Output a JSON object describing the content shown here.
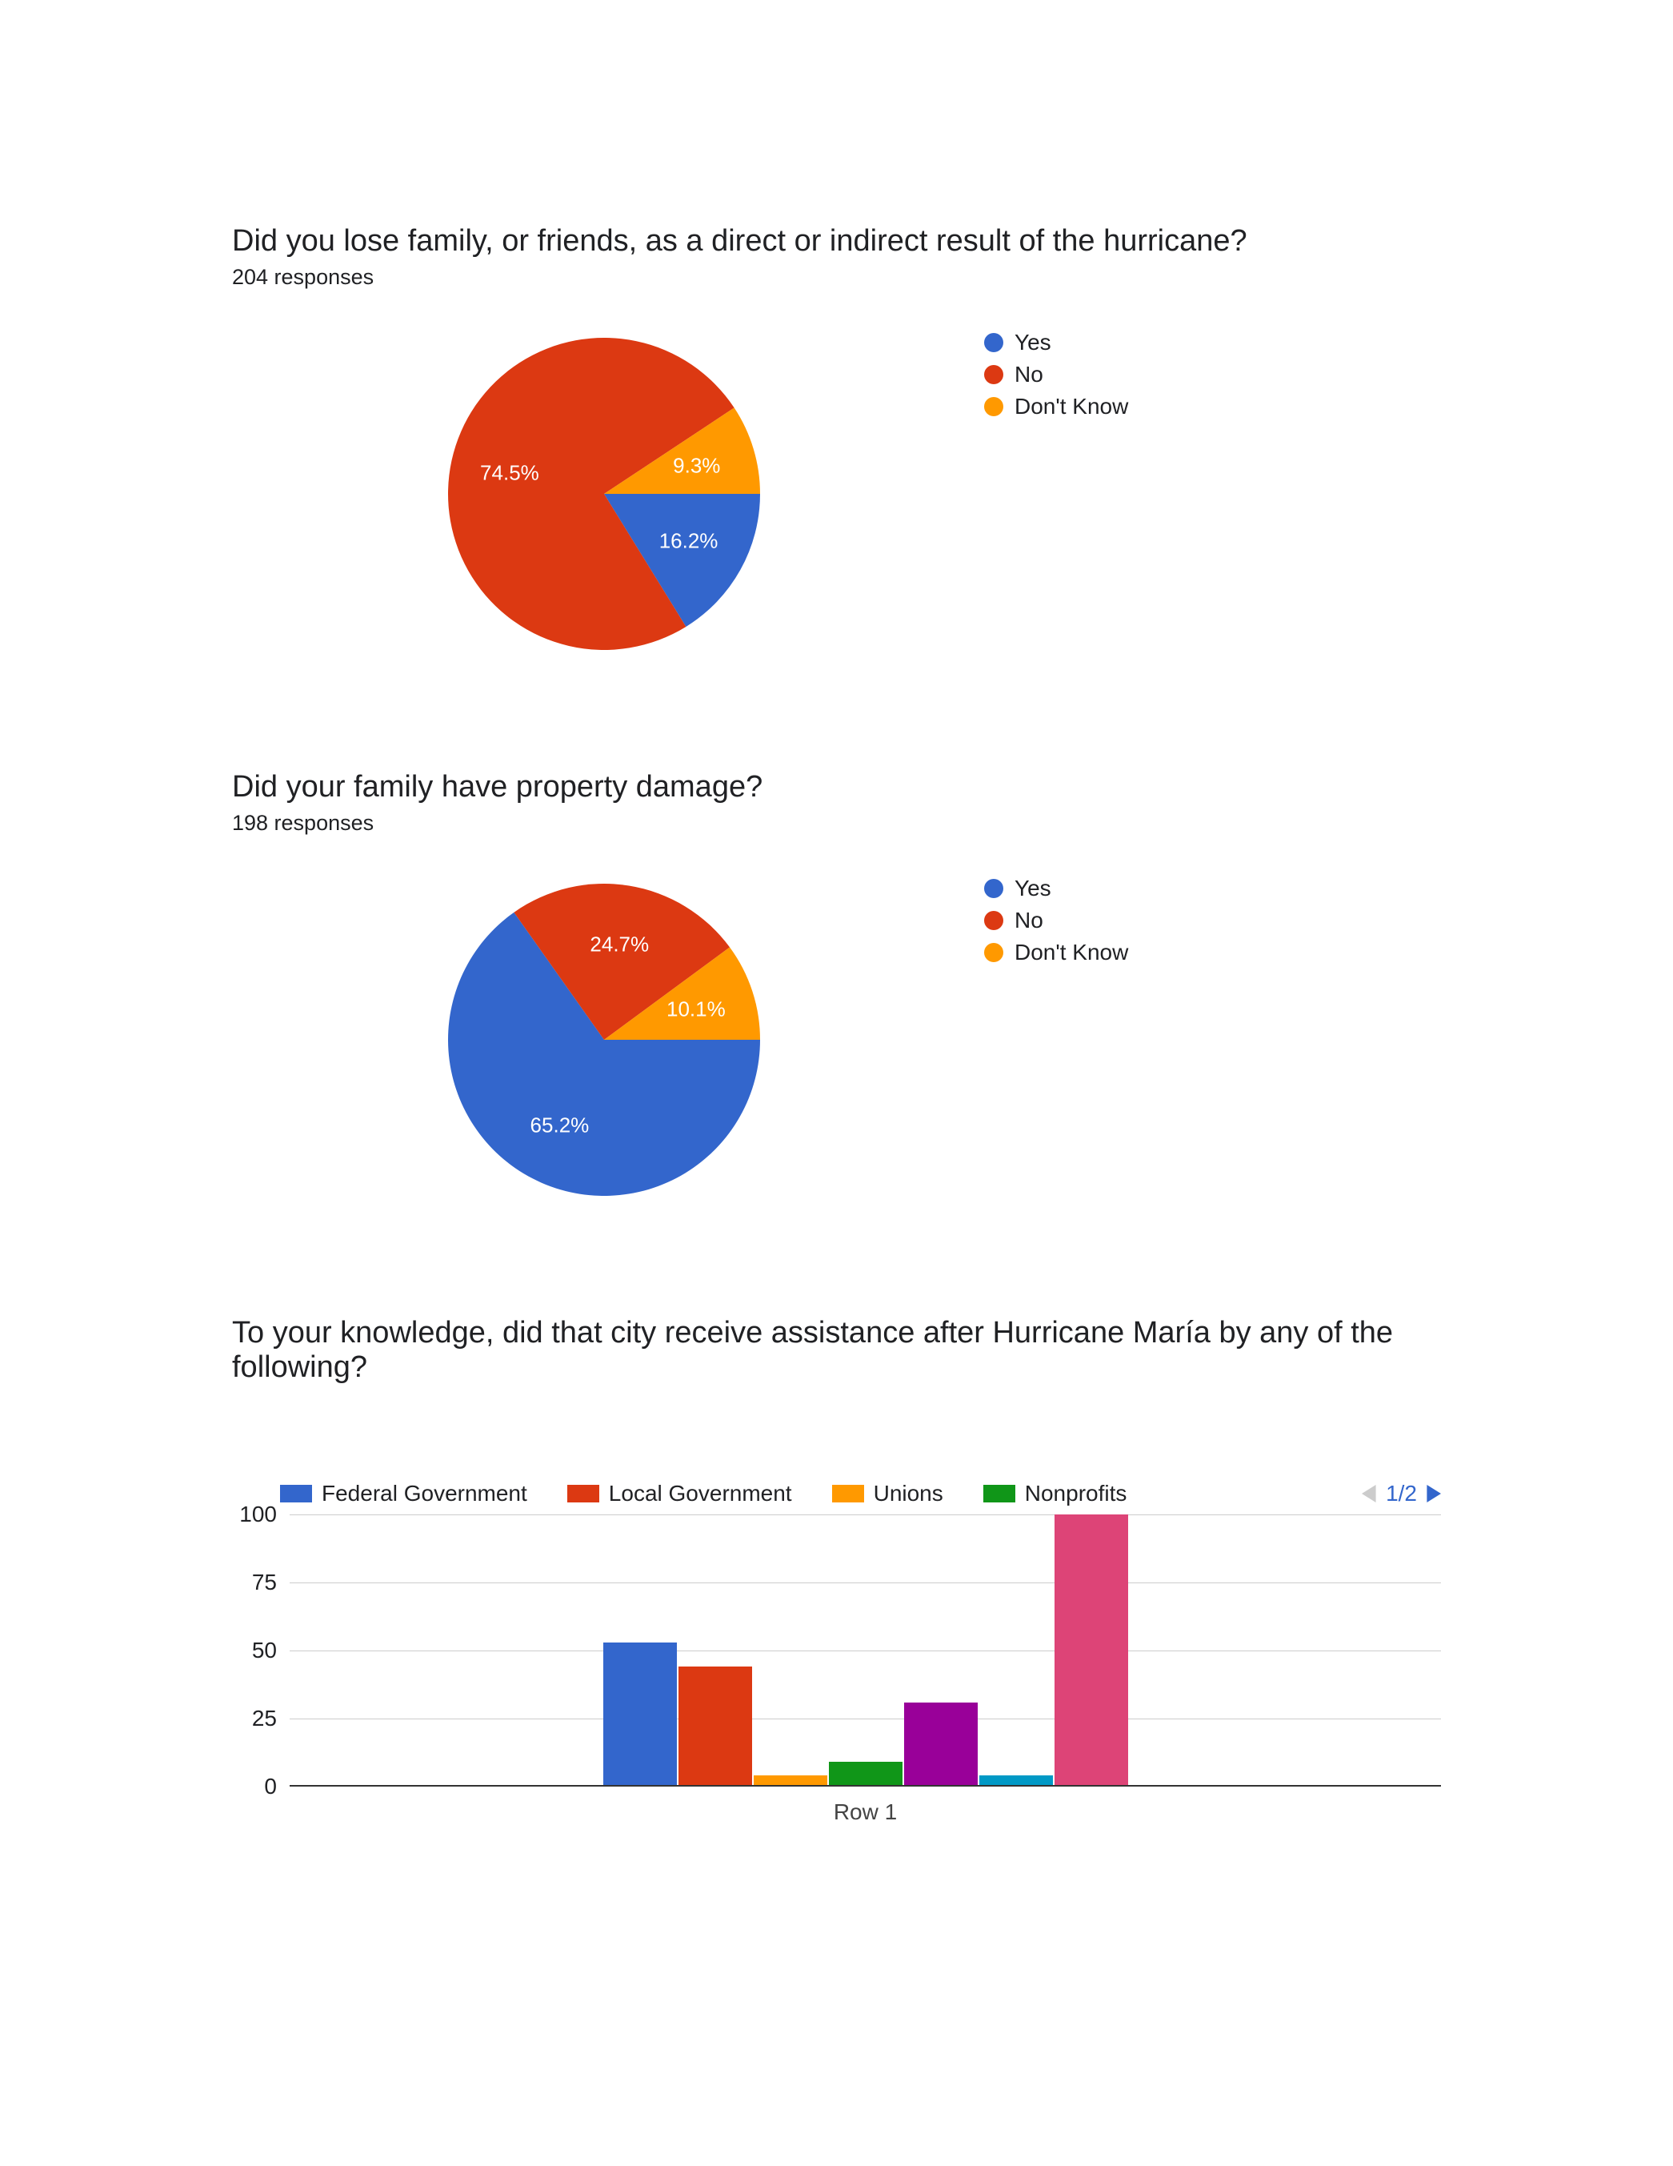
{
  "colors": {
    "blue": "#3366cc",
    "red": "#dc3912",
    "orange": "#ff9900",
    "green": "#109618",
    "purple": "#990099",
    "cyan": "#0099c6",
    "pink": "#dd4477",
    "grid": "#cccccc",
    "baseline": "#333333",
    "text": "#202124",
    "arrow_disabled": "#cccccc",
    "arrow_enabled": "#3366cc",
    "background": "#ffffff"
  },
  "chart1": {
    "type": "pie",
    "title": "Did you lose family, or friends, as a direct or indirect result of the hurricane?",
    "responses_label": "204 responses",
    "slices": [
      {
        "label": "Yes",
        "pct": 16.2,
        "color": "#3366cc",
        "display": "16.2%"
      },
      {
        "label": "No",
        "pct": 74.5,
        "color": "#dc3912",
        "display": "74.5%"
      },
      {
        "label": "Don't Know",
        "pct": 9.3,
        "color": "#ff9900",
        "display": "9.3%"
      }
    ],
    "legend": [
      {
        "label": "Yes",
        "color": "#3366cc"
      },
      {
        "label": "No",
        "color": "#dc3912"
      },
      {
        "label": "Don't Know",
        "color": "#ff9900"
      }
    ]
  },
  "chart2": {
    "type": "pie",
    "title": "Did your family have property damage?",
    "responses_label": "198 responses",
    "slices": [
      {
        "label": "Yes",
        "pct": 65.2,
        "color": "#3366cc",
        "display": "65.2%"
      },
      {
        "label": "No",
        "pct": 24.7,
        "color": "#dc3912",
        "display": "24.7%"
      },
      {
        "label": "Don't Know",
        "pct": 10.1,
        "color": "#ff9900",
        "display": "10.1%"
      }
    ],
    "legend": [
      {
        "label": "Yes",
        "color": "#3366cc"
      },
      {
        "label": "No",
        "color": "#dc3912"
      },
      {
        "label": "Don't Know",
        "color": "#ff9900"
      }
    ]
  },
  "chart3": {
    "type": "bar",
    "title": "To your knowledge, did that city receive assistance after Hurricane María by any of the following?",
    "ylim": [
      0,
      100
    ],
    "yticks": [
      0,
      25,
      50,
      75,
      100
    ],
    "x_label": "Row 1",
    "legend": [
      {
        "label": "Federal Government",
        "color": "#3366cc"
      },
      {
        "label": "Local Government",
        "color": "#dc3912"
      },
      {
        "label": "Unions",
        "color": "#ff9900"
      },
      {
        "label": "Nonprofits",
        "color": "#109618"
      }
    ],
    "bars": [
      {
        "value": 53,
        "color": "#3366cc"
      },
      {
        "value": 44,
        "color": "#dc3912"
      },
      {
        "value": 4,
        "color": "#ff9900"
      },
      {
        "value": 9,
        "color": "#109618"
      },
      {
        "value": 31,
        "color": "#990099"
      },
      {
        "value": 4,
        "color": "#0099c6"
      },
      {
        "value": 101,
        "color": "#dd4477"
      }
    ],
    "pager": {
      "current": 1,
      "total": 2,
      "display": "1/2"
    }
  }
}
